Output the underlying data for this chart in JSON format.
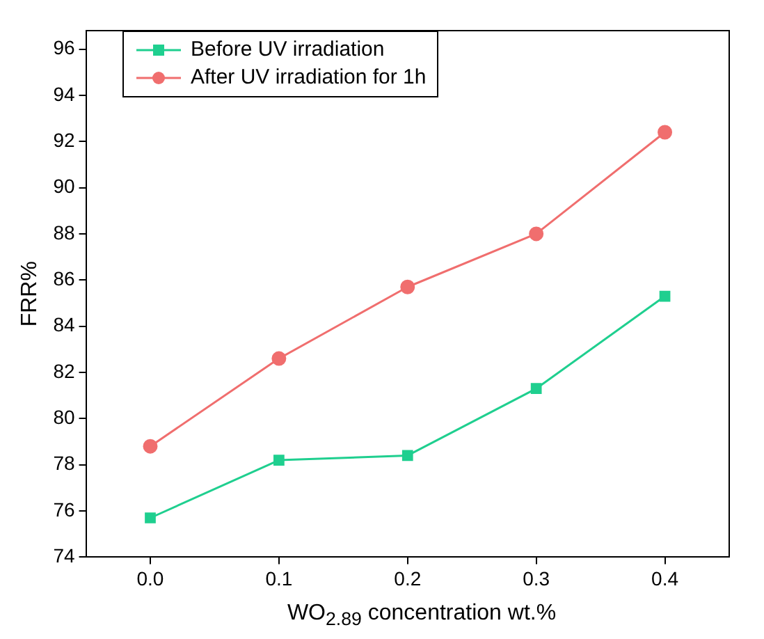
{
  "chart_data": {
    "type": "line",
    "xlabel": "WO$_{2.89}$ concentration wt.%",
    "ylabel": "FRR%",
    "x": [
      0,
      0.1,
      0.2,
      0.3,
      0.4
    ],
    "series": [
      {
        "name": "Before UV irradiation",
        "color": "#1fcf8f",
        "marker": "square",
        "values": [
          75.7,
          78.2,
          78.4,
          81.3,
          85.3
        ]
      },
      {
        "name": "After UV irradiation for 1h",
        "color": "#f06e6e",
        "marker": "circle",
        "values": [
          78.8,
          82.6,
          85.7,
          88.0,
          92.4
        ]
      }
    ],
    "xlim": [
      -0.05,
      0.45
    ],
    "xticks": [
      {
        "value": 0,
        "label": "0.0"
      },
      0.1,
      0.2,
      0.3,
      0.4
    ],
    "ylim": [
      74,
      96.8
    ],
    "yticks": [
      74,
      76,
      78,
      80,
      82,
      84,
      86,
      88,
      90,
      92,
      94,
      96
    ],
    "grid": false,
    "legend": "top left",
    "line_style": "solid"
  }
}
